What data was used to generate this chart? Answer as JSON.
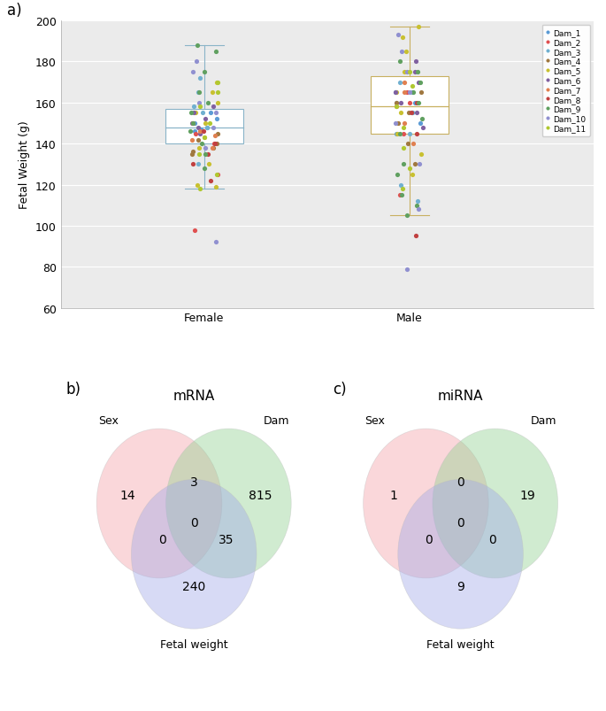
{
  "title_a": "a)",
  "title_b": "b)",
  "title_c": "c)",
  "ylabel_a": "Fetal Weight (g)",
  "xlabel_female": "Female",
  "xlabel_male": "Male",
  "ylim_a": [
    60,
    200
  ],
  "yticks_a": [
    60,
    80,
    100,
    120,
    140,
    160,
    180,
    200
  ],
  "bg_color": "#ebebeb",
  "box_color_female": "#8ab4c8",
  "box_color_male": "#c8b060",
  "dam_colors": {
    "Dam_1": "#5b9bd5",
    "Dam_2": "#e05050",
    "Dam_3": "#70b0d0",
    "Dam_4": "#a07840",
    "Dam_5": "#c8c030",
    "Dam_6": "#8060a0",
    "Dam_7": "#e08050",
    "Dam_8": "#c04040",
    "Dam_9": "#60a060",
    "Dam_10": "#9090d0",
    "Dam_11": "#b0c830"
  },
  "female_data": {
    "Dam_1": [
      147,
      152,
      155,
      148,
      150,
      146
    ],
    "Dam_2": [
      125,
      140,
      145,
      98
    ],
    "Dam_3": [
      130,
      148,
      158,
      165,
      172,
      155
    ],
    "Dam_4": [
      135,
      140,
      145,
      138,
      142,
      136
    ],
    "Dam_5": [
      120,
      130,
      138,
      143,
      150,
      155,
      160,
      165,
      170,
      119
    ],
    "Dam_6": [
      145,
      148,
      152,
      155,
      158,
      150
    ],
    "Dam_7": [
      138,
      142,
      146,
      150,
      144
    ],
    "Dam_8": [
      122,
      135,
      140,
      146,
      130
    ],
    "Dam_9": [
      128,
      135,
      140,
      146,
      150,
      155,
      160,
      165,
      175,
      185,
      188
    ],
    "Dam_10": [
      92,
      138,
      148,
      155,
      160,
      175,
      180
    ],
    "Dam_11": [
      118,
      125,
      135,
      143,
      150,
      158,
      165,
      170
    ]
  },
  "male_data": {
    "Dam_1": [
      145,
      150,
      155,
      160,
      165
    ],
    "Dam_2": [
      115,
      145,
      160,
      165
    ],
    "Dam_3": [
      112,
      120,
      145,
      155,
      160,
      165,
      170
    ],
    "Dam_4": [
      130,
      140,
      150,
      155,
      160,
      165
    ],
    "Dam_5": [
      125,
      135,
      145,
      155,
      165,
      175,
      185,
      192,
      197
    ],
    "Dam_6": [
      148,
      155,
      160,
      165,
      170,
      175,
      180
    ],
    "Dam_7": [
      140,
      150,
      158,
      165,
      170
    ],
    "Dam_8": [
      95,
      145,
      155,
      160
    ],
    "Dam_9": [
      105,
      110,
      115,
      125,
      130,
      145,
      152,
      160,
      165,
      170,
      175,
      180
    ],
    "Dam_10": [
      79,
      108,
      130,
      150,
      165,
      175,
      185,
      193
    ],
    "Dam_11": [
      118,
      128,
      138,
      148,
      158,
      168,
      175
    ]
  },
  "female_box": {
    "q1": 140,
    "median": 148,
    "q3": 157,
    "whisker_low": 118,
    "whisker_high": 188
  },
  "male_box": {
    "q1": 145,
    "median": 158,
    "q3": 173,
    "whisker_low": 105,
    "whisker_high": 197
  },
  "venn_b": {
    "title": "mRNA",
    "labels": [
      "Sex",
      "Dam",
      "Fetal weight"
    ],
    "values": {
      "A": 14,
      "B": 815,
      "C": 240,
      "AB": 3,
      "AC": 0,
      "BC": 35,
      "ABC": 0
    }
  },
  "venn_c": {
    "title": "miRNA",
    "labels": [
      "Sex",
      "Dam",
      "Fetal weight"
    ],
    "values": {
      "A": 1,
      "B": 19,
      "C": 9,
      "AB": 0,
      "AC": 0,
      "BC": 0,
      "ABC": 0
    }
  },
  "venn_colors": {
    "sex": "#f4a0a8",
    "dam": "#90d090",
    "fetal": "#a0a8e8"
  }
}
